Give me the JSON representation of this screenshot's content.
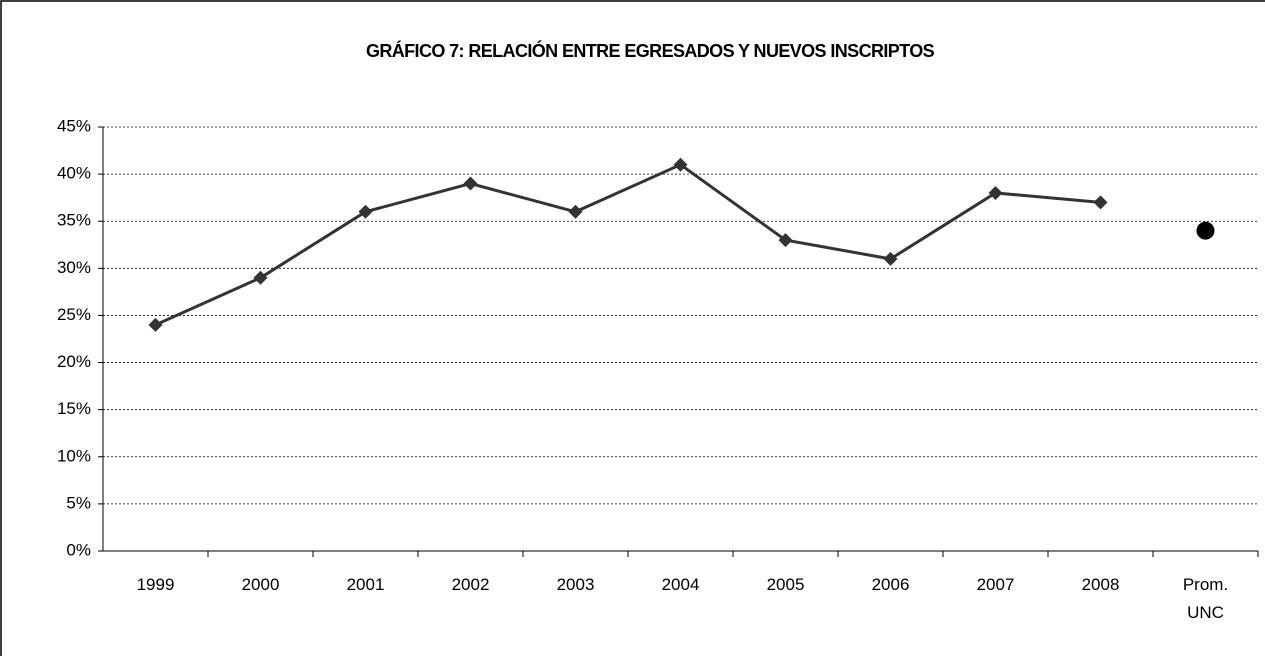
{
  "chart_data": {
    "type": "line",
    "title": "GRÁFICO 7: RELACIÓN ENTRE EGRESADOS Y NUEVOS INSCRIPTOS",
    "categories": [
      "1999",
      "2000",
      "2001",
      "2002",
      "2003",
      "2004",
      "2005",
      "2006",
      "2007",
      "2008",
      "Prom. UNC"
    ],
    "series": [
      {
        "color": "#333333",
        "values": [
          24,
          29,
          36,
          39,
          36,
          41,
          33,
          31,
          38,
          37,
          null
        ]
      },
      {
        "color": "#000000",
        "values": [
          null,
          null,
          null,
          null,
          null,
          null,
          null,
          null,
          null,
          null,
          34
        ]
      }
    ],
    "ylim": [
      0,
      45
    ],
    "yticks": [
      {
        "value": 0,
        "label": "0%"
      },
      {
        "value": 5,
        "label": "5%"
      },
      {
        "value": 10,
        "label": "10%"
      },
      {
        "value": 15,
        "label": "15%"
      },
      {
        "value": 20,
        "label": "20%"
      },
      {
        "value": 25,
        "label": "25%"
      },
      {
        "value": 30,
        "label": "30%"
      },
      {
        "value": 35,
        "label": "35%"
      },
      {
        "value": 40,
        "label": "40%"
      },
      {
        "value": 45,
        "label": "45%"
      }
    ],
    "grid": true
  }
}
